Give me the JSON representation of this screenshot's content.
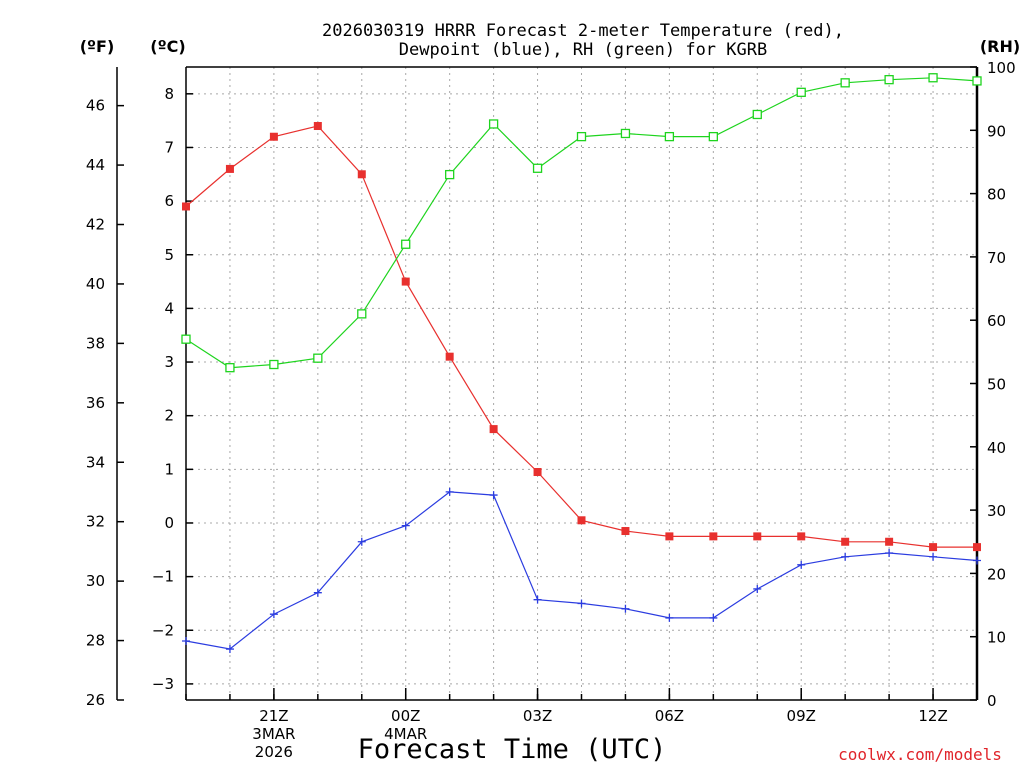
{
  "title_line1": "2026030319 HRRR Forecast 2-meter Temperature (red),",
  "title_line2": "Dewpoint (blue), RH (green) for KGRB",
  "units": {
    "fahrenheit": "(ºF)",
    "celsius": "(ºC)",
    "rh": "(RH)"
  },
  "xlabel": "Forecast Time (UTC)",
  "credit": "coolwx.com/models",
  "colors": {
    "temperature": "#e8302e",
    "dewpoint": "#2b3ce0",
    "rh": "#1ed41e"
  },
  "chart_data": {
    "type": "line",
    "title": "2026030319 HRRR Forecast 2-meter Temperature (red), Dewpoint (blue), RH (green) for KGRB",
    "xlabel": "Forecast Time (UTC)",
    "x": [
      "19Z",
      "20Z",
      "21Z",
      "22Z",
      "23Z",
      "00Z",
      "01Z",
      "02Z",
      "03Z",
      "04Z",
      "05Z",
      "06Z",
      "07Z",
      "08Z",
      "09Z",
      "10Z",
      "11Z",
      "12Z",
      "13Z"
    ],
    "x_tick_labels": [
      {
        "x": "21Z",
        "lines": [
          "21Z",
          "3MAR",
          "2026"
        ]
      },
      {
        "x": "00Z",
        "lines": [
          "00Z",
          "4MAR"
        ]
      },
      {
        "x": "03Z",
        "lines": [
          "03Z"
        ]
      },
      {
        "x": "06Z",
        "lines": [
          "06Z"
        ]
      },
      {
        "x": "09Z",
        "lines": [
          "09Z"
        ]
      },
      {
        "x": "12Z",
        "lines": [
          "12Z"
        ]
      }
    ],
    "ylim_celsius": [
      -3.3,
      8.5
    ],
    "ylim_fahrenheit": [
      26,
      47.3
    ],
    "ylim_rh": [
      0,
      100
    ],
    "yticks_celsius": [
      -3,
      -2,
      -1,
      0,
      1,
      2,
      3,
      4,
      5,
      6,
      7,
      8
    ],
    "yticks_fahrenheit": [
      26,
      28,
      30,
      32,
      34,
      36,
      38,
      40,
      42,
      44,
      46
    ],
    "yticks_rh": [
      0,
      10,
      20,
      30,
      40,
      50,
      60,
      70,
      80,
      90,
      100
    ],
    "grid": true,
    "series": [
      {
        "name": "Temperature",
        "color": "#e8302e",
        "axis": "celsius",
        "marker": "filled-square",
        "values": [
          5.9,
          6.6,
          7.2,
          7.4,
          6.5,
          4.5,
          3.1,
          1.75,
          0.95,
          0.05,
          -0.15,
          -0.25,
          -0.25,
          -0.25,
          -0.25,
          -0.35,
          -0.35,
          -0.45,
          -0.45
        ]
      },
      {
        "name": "Dewpoint",
        "color": "#2b3ce0",
        "axis": "celsius",
        "marker": "plus",
        "values": [
          -2.2,
          -2.35,
          -1.7,
          -1.3,
          -0.35,
          -0.05,
          0.58,
          0.52,
          -1.43,
          -1.5,
          -1.6,
          -1.77,
          -1.77,
          -1.23,
          -0.78,
          -0.63,
          -0.56,
          -0.63,
          -0.7
        ]
      },
      {
        "name": "RH",
        "color": "#1ed41e",
        "axis": "rh",
        "marker": "open-square",
        "values": [
          57,
          52.5,
          53,
          54,
          61,
          72,
          83,
          91,
          84,
          89,
          89.5,
          89,
          89,
          92.5,
          96,
          97.5,
          98,
          98.3,
          97.8
        ]
      }
    ]
  }
}
